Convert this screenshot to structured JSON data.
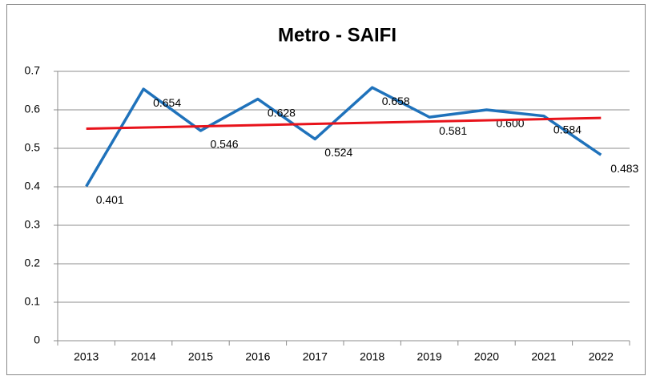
{
  "chart_data": {
    "type": "line",
    "title": "Metro - SAIFI",
    "categories": [
      "2013",
      "2014",
      "2015",
      "2016",
      "2017",
      "2018",
      "2019",
      "2020",
      "2021",
      "2022"
    ],
    "series": [
      {
        "color": "#1f72bb",
        "values": [
          0.401,
          0.654,
          0.546,
          0.628,
          0.524,
          0.658,
          0.581,
          0.6,
          0.584,
          0.483
        ],
        "value_labels": [
          "0.401",
          "0.654",
          "0.546",
          "0.628",
          "0.524",
          "0.658",
          "0.581",
          "0.600",
          "0.584",
          "0.483"
        ]
      }
    ],
    "trend": {
      "color": "#e8131b",
      "values": [
        0.551,
        0.579
      ]
    },
    "ylim": [
      0,
      0.7
    ],
    "yticks": [
      0,
      0.1,
      0.2,
      0.3,
      0.4,
      0.5,
      0.6,
      0.7
    ],
    "grid": true
  }
}
